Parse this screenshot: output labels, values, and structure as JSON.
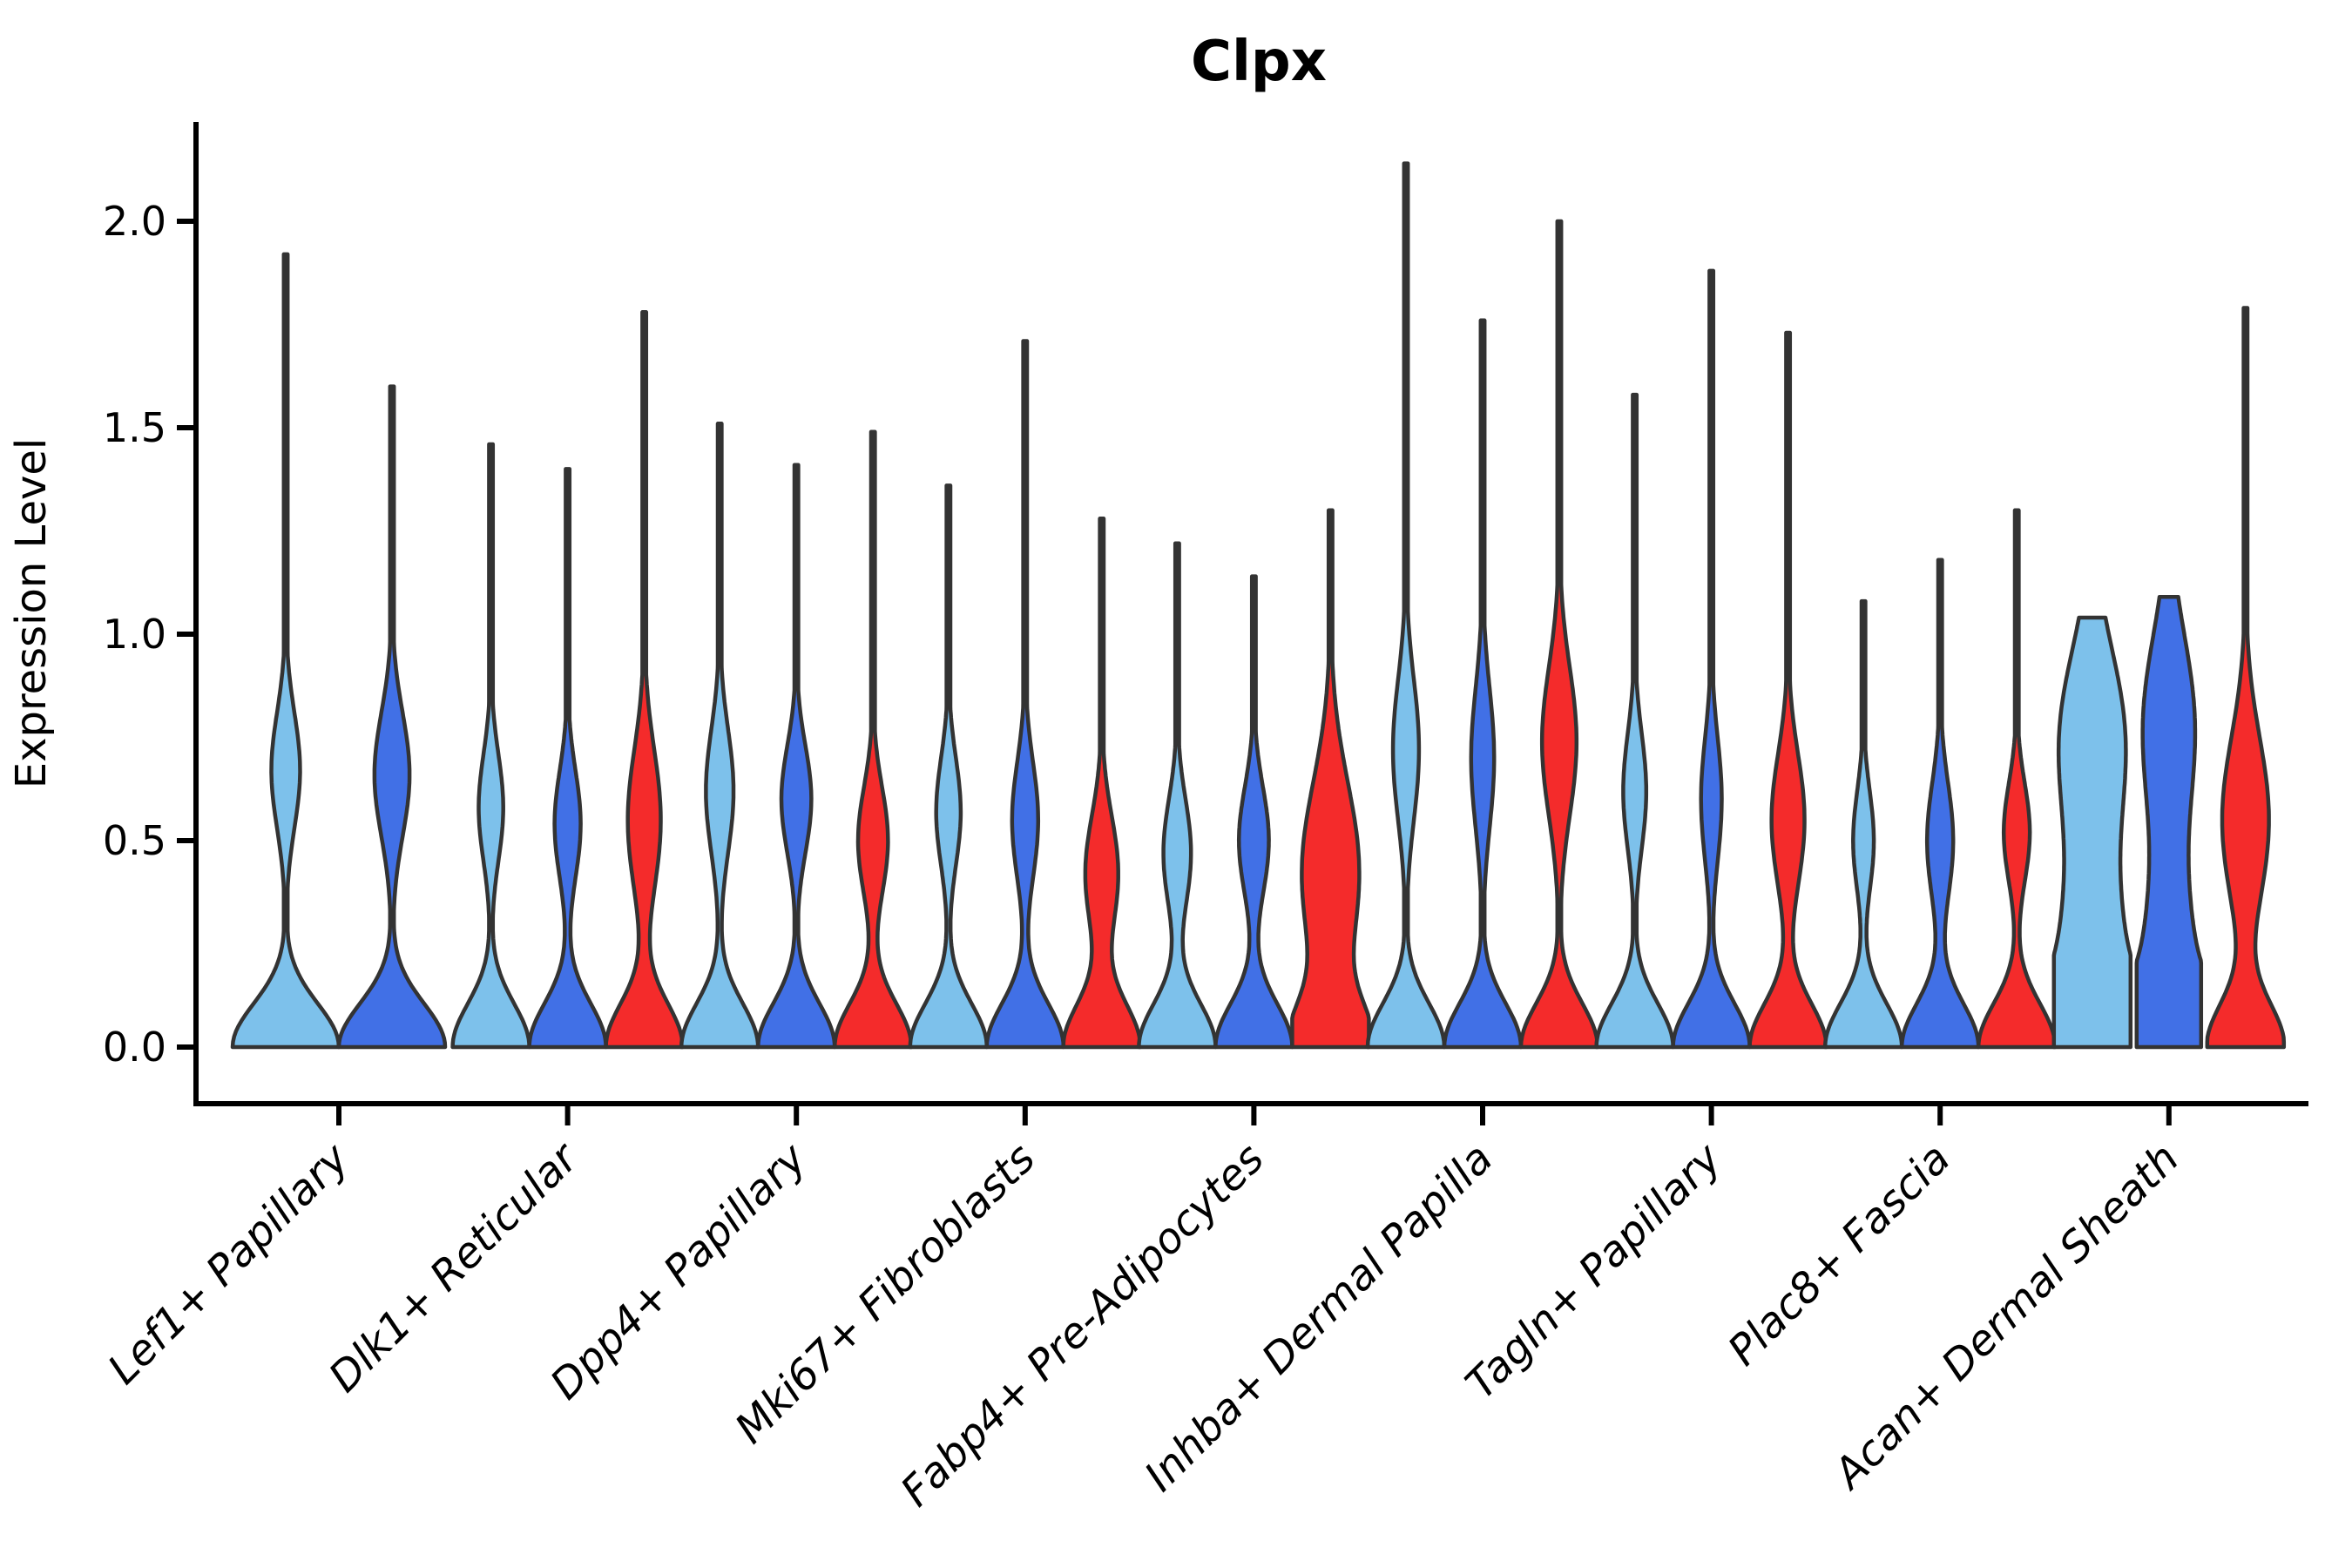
{
  "chart_data": {
    "type": "violin",
    "title": "Clpx",
    "ylabel": "Expression Level",
    "xlabel": "",
    "ylim": [
      -0.14,
      2.24
    ],
    "yticks": [
      0,
      0.5,
      1.0,
      1.5,
      2.0
    ],
    "ytick_labels": [
      "0.0",
      "0.5",
      "1.0",
      "1.5",
      "2.0"
    ],
    "grid": false,
    "legend": "none",
    "background_color": "#ffffff",
    "axis_color": "#000000",
    "outline_color": "#333333",
    "categories": [
      "Lef1+ Papillary",
      "Dlk1+ Reticular",
      "Dpp4+ Papillary",
      "Mki67+ Fibroblasts",
      "Fabp4+ Pre-Adipocytes",
      "Inhba+ Dermal Papilla",
      "Tagln+ Papillary",
      "Plac8+ Fascia",
      "Acan+ Dermal Sheath"
    ],
    "series": [
      {
        "name": "series-1-lightblue",
        "color": "#7DC1EB"
      },
      {
        "name": "series-2-royalblue",
        "color": "#4170E6"
      },
      {
        "name": "series-3-red",
        "color": "#F42B2B"
      }
    ],
    "violins": [
      {
        "category": 0,
        "series": 0,
        "max": 1.92,
        "shape": "spike",
        "bumps": [
          [
            0.67,
            0.14,
            0.27
          ]
        ]
      },
      {
        "category": 0,
        "series": 1,
        "max": 1.6,
        "shape": "spike",
        "bumps": [
          [
            0.66,
            0.15,
            0.33
          ]
        ]
      },
      {
        "category": 1,
        "series": 0,
        "max": 1.46,
        "shape": "spike",
        "bumps": [
          [
            0.58,
            0.13,
            0.32
          ]
        ]
      },
      {
        "category": 1,
        "series": 1,
        "max": 1.4,
        "shape": "spike",
        "bumps": [
          [
            0.54,
            0.13,
            0.34
          ]
        ]
      },
      {
        "category": 1,
        "series": 2,
        "max": 1.78,
        "shape": "spike",
        "bumps": [
          [
            0.55,
            0.17,
            0.43
          ]
        ]
      },
      {
        "category": 2,
        "series": 0,
        "max": 1.51,
        "shape": "spike",
        "bumps": [
          [
            0.62,
            0.15,
            0.36
          ]
        ]
      },
      {
        "category": 2,
        "series": 1,
        "max": 1.41,
        "shape": "spike",
        "bumps": [
          [
            0.6,
            0.13,
            0.39
          ]
        ]
      },
      {
        "category": 2,
        "series": 2,
        "max": 1.49,
        "shape": "spike",
        "bumps": [
          [
            0.5,
            0.13,
            0.39
          ]
        ]
      },
      {
        "category": 3,
        "series": 0,
        "max": 1.36,
        "shape": "spike",
        "bumps": [
          [
            0.57,
            0.13,
            0.32
          ]
        ]
      },
      {
        "category": 3,
        "series": 1,
        "max": 1.71,
        "shape": "spike",
        "bumps": [
          [
            0.55,
            0.14,
            0.34
          ]
        ]
      },
      {
        "category": 3,
        "series": 2,
        "max": 1.28,
        "shape": "spike",
        "bumps": [
          [
            0.42,
            0.14,
            0.43
          ]
        ]
      },
      {
        "category": 4,
        "series": 0,
        "max": 1.22,
        "shape": "spike",
        "bumps": [
          [
            0.47,
            0.13,
            0.36
          ]
        ]
      },
      {
        "category": 4,
        "series": 1,
        "max": 1.14,
        "shape": "spike",
        "bumps": [
          [
            0.5,
            0.13,
            0.39
          ]
        ]
      },
      {
        "category": 4,
        "series": 2,
        "max": 1.3,
        "shape": "spike",
        "bumps": [
          [
            0.42,
            0.22,
            0.75
          ]
        ]
      },
      {
        "category": 5,
        "series": 0,
        "max": 2.14,
        "shape": "spike",
        "bumps": [
          [
            0.72,
            0.17,
            0.34
          ]
        ]
      },
      {
        "category": 5,
        "series": 1,
        "max": 1.76,
        "shape": "spike",
        "bumps": [
          [
            0.7,
            0.17,
            0.3
          ]
        ]
      },
      {
        "category": 5,
        "series": 2,
        "max": 2.0,
        "shape": "spike",
        "bumps": [
          [
            0.74,
            0.18,
            0.45
          ]
        ]
      },
      {
        "category": 6,
        "series": 0,
        "max": 1.58,
        "shape": "spike",
        "bumps": [
          [
            0.62,
            0.14,
            0.3
          ]
        ]
      },
      {
        "category": 6,
        "series": 1,
        "max": 1.88,
        "shape": "spike",
        "bumps": [
          [
            0.6,
            0.15,
            0.27
          ]
        ]
      },
      {
        "category": 6,
        "series": 2,
        "max": 1.73,
        "shape": "spike",
        "bumps": [
          [
            0.55,
            0.16,
            0.43
          ]
        ]
      },
      {
        "category": 7,
        "series": 0,
        "max": 1.08,
        "shape": "spike",
        "bumps": [
          [
            0.5,
            0.12,
            0.27
          ]
        ]
      },
      {
        "category": 7,
        "series": 1,
        "max": 1.18,
        "shape": "spike",
        "bumps": [
          [
            0.5,
            0.14,
            0.34
          ]
        ]
      },
      {
        "category": 7,
        "series": 2,
        "max": 1.3,
        "shape": "spike",
        "bumps": [
          [
            0.52,
            0.12,
            0.34
          ]
        ]
      },
      {
        "category": 8,
        "series": 0,
        "max": 1.04,
        "shape": "flat",
        "wmax": 1.0,
        "bumps": [
          [
            0.12,
            0.26,
            0.92
          ],
          [
            0.75,
            0.22,
            0.82
          ]
        ]
      },
      {
        "category": 8,
        "series": 1,
        "max": 1.09,
        "shape": "flat",
        "wmax": 0.84,
        "bumps": [
          [
            0.12,
            0.25,
            0.72
          ],
          [
            0.78,
            0.22,
            0.66
          ]
        ]
      },
      {
        "category": 8,
        "series": 2,
        "max": 1.79,
        "shape": "spike",
        "bumps": [
          [
            0.55,
            0.2,
            0.61
          ]
        ]
      }
    ]
  }
}
